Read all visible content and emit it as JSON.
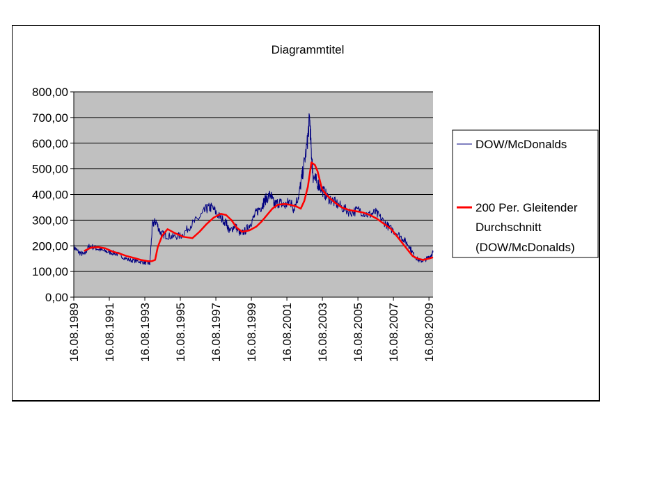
{
  "chart_data": {
    "type": "line",
    "title": "Diagrammtitel",
    "xlabel": "",
    "ylabel": "",
    "ylim": [
      0,
      800
    ],
    "y_ticks": [
      "0,00",
      "100,00",
      "200,00",
      "300,00",
      "400,00",
      "500,00",
      "600,00",
      "700,00",
      "800,00"
    ],
    "x_ticks": [
      "16.08.1989",
      "16.08.1991",
      "16.08.1993",
      "16.08.1995",
      "16.08.1997",
      "16.08.1999",
      "16.08.2001",
      "16.08.2003",
      "16.08.2005",
      "16.08.2007",
      "16.08.2009"
    ],
    "x_range": [
      1989.62,
      2009.85
    ],
    "grid": true,
    "legend_position": "right",
    "series": [
      {
        "name": "DOW/McDonalds",
        "color": "#000080",
        "x": [
          1989.62,
          1989.9,
          1990.2,
          1990.5,
          1990.9,
          1991.3,
          1991.7,
          1992.2,
          1992.7,
          1993.2,
          1993.6,
          1993.9,
          1994.05,
          1994.25,
          1994.5,
          1994.8,
          1995.2,
          1995.7,
          1996.2,
          1996.7,
          1997.1,
          1997.4,
          1997.8,
          1998.2,
          1998.4,
          1998.7,
          1999.0,
          1999.3,
          1999.6,
          1999.9,
          2000.2,
          2000.4,
          2000.7,
          2000.9,
          2001.2,
          2001.5,
          2001.8,
          2002.0,
          2002.3,
          2002.5,
          2002.75,
          2002.9,
          2003.0,
          2003.1,
          2003.3,
          2003.6,
          2003.9,
          2004.3,
          2004.7,
          2005.2,
          2005.7,
          2006.2,
          2006.6,
          2007.0,
          2007.4,
          2007.8,
          2008.2,
          2008.5,
          2008.8,
          2009.1,
          2009.4,
          2009.7,
          2009.85
        ],
        "values": [
          195,
          175,
          165,
          200,
          190,
          180,
          175,
          165,
          145,
          140,
          135,
          130,
          285,
          295,
          250,
          240,
          235,
          240,
          280,
          310,
          345,
          350,
          315,
          290,
          255,
          280,
          245,
          260,
          290,
          330,
          355,
          380,
          400,
          360,
          370,
          355,
          375,
          345,
          400,
          480,
          590,
          700,
          560,
          470,
          450,
          420,
          390,
          370,
          350,
          330,
          340,
          320,
          330,
          300,
          270,
          250,
          225,
          200,
          160,
          140,
          145,
          160,
          175
        ]
      },
      {
        "name": "200 Per. Gleitender Durchschnitt (DOW/McDonalds)",
        "color": "#ff0000",
        "x": [
          1990.2,
          1990.6,
          1991.0,
          1991.4,
          1991.8,
          1992.2,
          1992.6,
          1993.0,
          1993.4,
          1993.8,
          1994.0,
          1994.2,
          1994.35,
          1994.6,
          1994.9,
          1995.3,
          1995.8,
          1996.3,
          1996.7,
          1997.1,
          1997.5,
          1997.9,
          1998.2,
          1998.5,
          1998.8,
          1999.1,
          1999.5,
          1999.9,
          2000.2,
          2000.5,
          2000.8,
          2001.1,
          2001.5,
          2001.8,
          2002.1,
          2002.4,
          2002.6,
          2002.8,
          2003.0,
          2003.2,
          2003.35,
          2003.6,
          2003.9,
          2004.3,
          2004.7,
          2005.1,
          2005.5,
          2005.9,
          2006.3,
          2006.7,
          2007.1,
          2007.5,
          2007.9,
          2008.3,
          2008.7,
          2009.0,
          2009.3,
          2009.6,
          2009.85
        ],
        "values": [
          180,
          193,
          195,
          190,
          178,
          170,
          160,
          153,
          145,
          140,
          140,
          145,
          195,
          240,
          265,
          250,
          235,
          230,
          255,
          285,
          310,
          325,
          320,
          300,
          270,
          255,
          260,
          275,
          295,
          320,
          345,
          360,
          363,
          360,
          355,
          345,
          375,
          430,
          525,
          515,
          490,
          420,
          395,
          370,
          350,
          340,
          335,
          330,
          320,
          305,
          285,
          265,
          230,
          195,
          160,
          150,
          145,
          150,
          155
        ]
      }
    ],
    "legend": {
      "series1": "DOW/McDonalds",
      "series2_lines": [
        "200 Per. Gleitender",
        "Durchschnitt",
        "(DOW/McDonalds)"
      ]
    }
  }
}
